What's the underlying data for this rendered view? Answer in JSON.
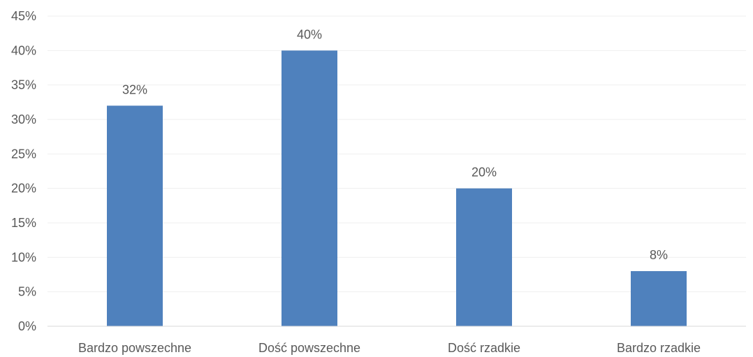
{
  "chart_data": {
    "type": "bar",
    "categories": [
      "Bardzo powszechne",
      "Dość powszechne",
      "Dość rzadkie",
      "Bardzo rzadkie"
    ],
    "values": [
      32,
      40,
      20,
      8
    ],
    "data_labels": [
      "32%",
      "40%",
      "20%",
      "8%"
    ],
    "y_ticks": [
      0,
      5,
      10,
      15,
      20,
      25,
      30,
      35,
      40,
      45
    ],
    "y_tick_labels": [
      "0%",
      "5%",
      "10%",
      "15%",
      "20%",
      "25%",
      "30%",
      "35%",
      "40%",
      "45%"
    ],
    "ylim": [
      0,
      45
    ],
    "unit": "%",
    "grid": true,
    "legend": "none",
    "title": "",
    "xlabel": "",
    "ylabel": "",
    "colors": {
      "bar": "#4f81bd",
      "grid": "#efefef",
      "axis": "#d9d9d9",
      "text": "#595959"
    }
  }
}
